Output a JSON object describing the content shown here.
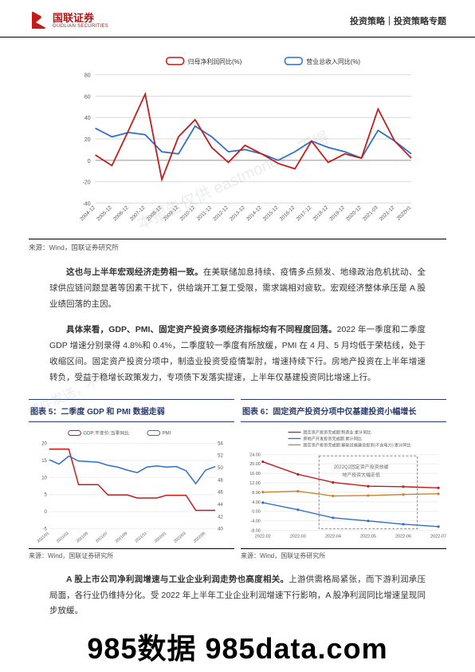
{
  "header": {
    "logo_cn": "国联证券",
    "logo_en": "GUOLIAN SECURITIES",
    "right": "投资策略｜投资策略专题"
  },
  "main_chart": {
    "legend": [
      {
        "label": "归母净利润同比(%)",
        "color": "#c61a1a"
      },
      {
        "label": "营业总收入同比(%)",
        "color": "#2e6fc9"
      }
    ],
    "x_labels": [
      "2004-12",
      "2005-12",
      "2006-12",
      "2007-12",
      "2008-12",
      "2009-12",
      "2010-12",
      "2011-12",
      "2012-12",
      "2013-12",
      "2014-12",
      "2015-12",
      "2016-12",
      "2017-12",
      "2018-12",
      "2019-12",
      "2020-12",
      "2021-03",
      "2021-12",
      "2022H1"
    ],
    "y_ticks": [
      -40,
      -20,
      0,
      20,
      40,
      60,
      80
    ],
    "series": {
      "red": [
        5,
        -5,
        28,
        62,
        -18,
        22,
        38,
        12,
        -2,
        14,
        6,
        -3,
        -8,
        18,
        -2,
        6,
        2,
        48,
        18,
        2
      ],
      "blue": [
        30,
        22,
        26,
        24,
        8,
        6,
        32,
        22,
        8,
        10,
        6,
        0,
        8,
        18,
        12,
        8,
        2,
        28,
        18,
        6
      ]
    },
    "ylim": [
      -40,
      80
    ],
    "grid_color": "#d9d9d9",
    "axis_fontsize": 7
  },
  "source": "来源：Wind，国联证券研究所",
  "para1": "这也与上半年宏观经济走势相一致。在美联储加息持续、疫情多点频发、地缘政治危机扰动、全球供应链问题显著等因素干扰下，供给端开工复工受限，需求端相对疲软。宏观经济整体承压是 A 股业绩回落的主因。",
  "para1_bold": "这也与上半年宏观经济走势相一致。",
  "para2": "具体来看，GDP、PMI、固定资产投资多项经济指标均有不同程度回落。2022 年一季度和二季度 GDP 增速分别录得 4.8%和 0.4%，二季度较一季度有所放缓，PMI 在 4 月、5 月均低于荣枯线，处于收缩区间。固定资产投资分项中，制造业投资受疫情掣肘，增速持续下行。房地产投资在上半年增速转负，受益于稳增长政策发力，专项债下发落实提速，上半年仅基建投资同比增速上行。",
  "para2_bold": "具体来看，GDP、PMI、固定资产投资多项经济指标均有不同程度回落。",
  "chart5": {
    "title": "图表 5：二季度 GDP 和 PMI 数据走弱",
    "legend": [
      {
        "label": "GDP:不变价:当季同比",
        "color": "#c61a1a"
      },
      {
        "label": "PMI",
        "color": "#2e6fc9"
      }
    ],
    "x_labels": [
      "2021/01",
      "2021/02",
      "2021/03",
      "2021/04",
      "2021/05",
      "2021/06",
      "2021/07",
      "2021/08",
      "2021/09",
      "2021/10",
      "2021/11",
      "2021/12",
      "2022/01",
      "2022/02",
      "2022/03",
      "2022/04",
      "2022/05",
      "2022/06"
    ],
    "y_left": {
      "ticks": [
        -5,
        0,
        5,
        10,
        15,
        20
      ],
      "lim": [
        -5,
        20
      ]
    },
    "y_right": {
      "ticks": [
        40,
        42,
        44,
        46,
        48,
        50,
        52,
        54
      ],
      "lim": [
        40,
        54
      ]
    },
    "red": [
      18.3,
      18.3,
      18.3,
      7.9,
      7.9,
      7.9,
      4.9,
      4.9,
      4.9,
      4.0,
      4.0,
      4.0,
      4.8,
      4.8,
      4.8,
      0.4,
      0.4,
      0.4
    ],
    "blue": [
      51.3,
      50.6,
      51.9,
      51.1,
      51.0,
      50.9,
      50.4,
      50.1,
      49.6,
      49.2,
      50.1,
      50.3,
      50.1,
      50.2,
      49.5,
      47.4,
      49.6,
      50.2
    ]
  },
  "chart6": {
    "title": "图表 6：固定资产投资分项中仅基建投资小幅增长",
    "legend": [
      {
        "label": "固定资产投资完成额:制造业:累计同比",
        "color": "#c61a1a"
      },
      {
        "label": "房地产开发投资完成额:累计同比",
        "color": "#2e6fc9"
      },
      {
        "label": "固定资产投资完成额:基础设施建设投资(不含电力):累计同比",
        "color": "#c9842e"
      }
    ],
    "box_text": "2022Q2固定资产投资放缓\n地产投资大幅走低",
    "x_labels": [
      "2022-02",
      "2022-03",
      "2022-04",
      "2022-05",
      "2022-06",
      "2022-07"
    ],
    "y_ticks": [
      -8,
      -4,
      0,
      4,
      8,
      12,
      16,
      20,
      24
    ],
    "ylim": [
      -8,
      24
    ],
    "red": [
      20.9,
      15.6,
      12.2,
      10.6,
      10.4,
      9.9
    ],
    "blue": [
      3.7,
      0.7,
      -2.7,
      -4.0,
      -5.4,
      -6.4
    ],
    "orange": [
      8.1,
      8.5,
      6.5,
      6.7,
      7.1,
      7.4
    ]
  },
  "para3": "A 股上市公司净利润增速与工业企业利润走势也高度相关。上游供需格局紧张，而下游利润承压局面，各行业仍维持分化。受 2022 年上半年工业企业利润增速下行影响，A 股净利润同比增速呈现同步放缓。",
  "para3_bold": "A 股上市公司净利润增速与工业企业利润走势也高度相关。",
  "watermark1": "本报告仅供 eastmoney，不得",
  "watermark2": "邮件发送，不得",
  "footer": "985数据 985data.com"
}
